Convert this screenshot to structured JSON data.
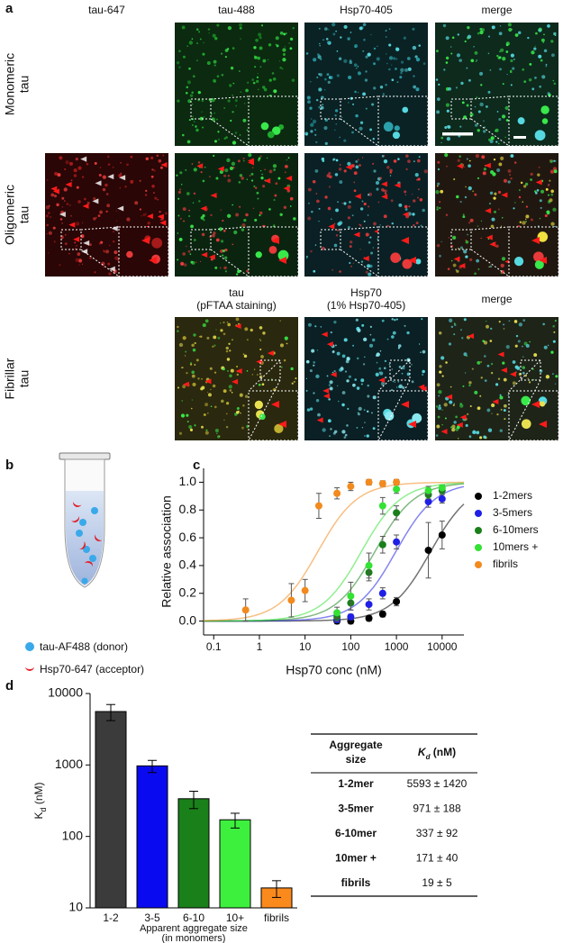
{
  "panel_a": {
    "label": "a",
    "columns": [
      "tau-647",
      "tau-488",
      "Hsp70-405",
      "merge"
    ],
    "rows": [
      {
        "label": [
          "Monomeric",
          "tau"
        ]
      },
      {
        "label": [
          "Oligomeric",
          "tau"
        ]
      },
      {
        "label": [
          "Fibrillar",
          "tau"
        ],
        "columns": [
          [
            "tau",
            "(pFTAA staining)"
          ],
          [
            "Hsp70",
            "(1% Hsp70-405)"
          ],
          "merge"
        ]
      }
    ]
  },
  "panel_b": {
    "label": "b",
    "legend": [
      "tau-AF488 (donor)",
      "Hsp70-647 (acceptor)"
    ]
  },
  "chart_data": [
    {
      "type": "scatter",
      "label": "c",
      "xlabel": "Hsp70 conc (nM)",
      "ylabel": "Relative association",
      "xscale": "log",
      "xlim": [
        0.06,
        30000
      ],
      "xticks": [
        0.1,
        1,
        10,
        100,
        1000,
        10000
      ],
      "ylim": [
        -0.1,
        1.1
      ],
      "yticks": [
        {
          "value": 0,
          "label": "0.0"
        },
        {
          "value": 0.2,
          "label": "0.2"
        },
        {
          "value": 0.4,
          "label": "0.4"
        },
        {
          "value": 0.6,
          "label": "0.6"
        },
        {
          "value": 0.8,
          "label": "0.8"
        },
        {
          "value": 1,
          "label": "1.0"
        }
      ],
      "fit": "hill",
      "legend": "upper right",
      "series": [
        {
          "name": "1-2mers",
          "color": "#000000",
          "x": [
            50,
            100,
            250,
            500,
            1000,
            5000,
            10000
          ],
          "values": [
            0,
            0,
            0.02,
            0.05,
            0.14,
            0.51,
            0.62
          ],
          "errors": [
            0.02,
            0.02,
            0.02,
            0.02,
            0.03,
            0.2,
            0.1
          ]
        },
        {
          "name": "3-5mers",
          "color": "#1f1fe6",
          "x": [
            50,
            100,
            250,
            500,
            1000,
            5000,
            10000
          ],
          "values": [
            0.01,
            0.03,
            0.12,
            0.2,
            0.57,
            0.86,
            0.88
          ],
          "errors": [
            0.02,
            0.02,
            0.04,
            0.04,
            0.05,
            0.04,
            0.03
          ]
        },
        {
          "name": "6-10mers",
          "color": "#1a7f1a",
          "x": [
            50,
            100,
            250,
            500,
            1000,
            5000,
            10000
          ],
          "values": [
            0.03,
            0.13,
            0.35,
            0.55,
            0.78,
            0.91,
            0.94
          ],
          "errors": [
            0.03,
            0.05,
            0.06,
            0.06,
            0.05,
            0.03,
            0.02
          ]
        },
        {
          "name": "10mers +",
          "color": "#33e233",
          "x": [
            50,
            100,
            250,
            500,
            1000,
            5000,
            10000
          ],
          "values": [
            0.06,
            0.18,
            0.4,
            0.83,
            0.95,
            0.94,
            0.96
          ],
          "errors": [
            0.04,
            0.1,
            0.09,
            0.06,
            0.03,
            0.03,
            0.02
          ]
        },
        {
          "name": "fibrils",
          "color": "#f28a1e",
          "x": [
            0.5,
            5,
            10,
            20,
            50,
            100,
            250,
            500,
            1000
          ],
          "values": [
            0.08,
            0.15,
            0.22,
            0.83,
            0.92,
            0.97,
            1,
            0.99,
            1
          ],
          "errors": [
            0.08,
            0.12,
            0.08,
            0.09,
            0.04,
            0.03,
            0.02,
            0.02,
            0.02
          ]
        }
      ]
    },
    {
      "type": "bar",
      "label": "d",
      "ylabel": {
        "symbol": "K",
        "sub": "d",
        "unit": " (nM)"
      },
      "xlabel": [
        "Apparent aggregate size",
        "(in monomers)"
      ],
      "yscale": "log",
      "ylim": [
        10,
        10000
      ],
      "yticks": [
        10,
        100,
        1000,
        10000
      ],
      "categories": [
        "1-2",
        "3-5",
        "6-10",
        "10+",
        "fibrils"
      ],
      "values": [
        5593,
        971,
        337,
        171,
        19
      ],
      "errors": [
        1420,
        188,
        92,
        40,
        5
      ],
      "colors": [
        "#3b3b3b",
        "#0a0af0",
        "#1a801a",
        "#3ef03e",
        "#fb8a1c"
      ]
    }
  ],
  "table": {
    "header": [
      [
        "Aggregate",
        "size"
      ],
      {
        "symbol": "K",
        "sub": "d",
        "unit": " (nM)"
      }
    ],
    "rows": [
      [
        "1-2mer",
        "5593 ± 1420"
      ],
      [
        "3-5mer",
        "971 ± 188"
      ],
      [
        "6-10mer",
        "337 ± 92"
      ],
      [
        "10mer +",
        "171 ± 40"
      ],
      [
        "fibrils",
        "19 ± 5"
      ]
    ]
  }
}
